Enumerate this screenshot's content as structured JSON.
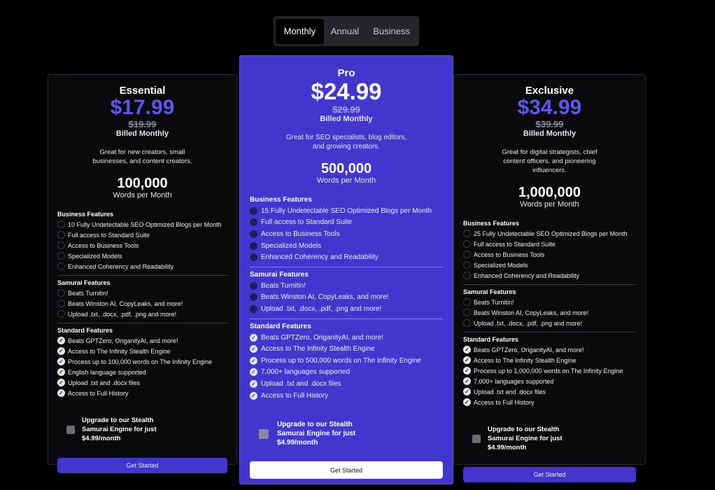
{
  "tabs": [
    {
      "label": "Monthly",
      "active": true
    },
    {
      "label": "Annual",
      "active": false
    },
    {
      "label": "Business",
      "active": false
    }
  ],
  "section_titles": {
    "business": "Business Features",
    "samurai": "Samurai Features",
    "standard": "Standard Features"
  },
  "plans": [
    {
      "name": "Essential",
      "price": "$17.99",
      "old_price": "$19.99",
      "billed": "Billed Monthly",
      "desc": "Great for new creators, small businesses, and content creators.",
      "words": "100,000",
      "words_label": "Words per Month",
      "business": [
        "10 Fully Undetectable SEO Optimized Blogs per Month",
        "Full access to Standard Suite",
        "Access to Business Tools",
        "Specialized Models",
        "Enhanced Coherency and Readability"
      ],
      "samurai": [
        "Beats Turnitin!",
        "Beats Winston AI, CopyLeaks, and more!",
        "Upload .txt, .docx, .pdf, .png and more!"
      ],
      "standard": [
        "Beats GPTZero, OriganityAI, and more!",
        "Access to The Infinity Stealth Engine",
        "Process up to 100,000 words on The Infinity Engine",
        "English language supported",
        "Upload .txt and .docx files",
        "Access to Full History"
      ],
      "upgrade": "Upgrade to our Stealth Samurai Engine for just $4.99/month",
      "button": "Get Started"
    },
    {
      "name": "Pro",
      "price": "$24.99",
      "old_price": "$29.99",
      "billed": "Billed Monthly",
      "desc": "Great for SEO specialists, blog editors, and growing creators.",
      "words": "500,000",
      "words_label": "Words per Month",
      "business": [
        "15 Fully Undetectable SEO Optimized Blogs per Month",
        "Full access to Standard Suite",
        "Access to Business Tools",
        "Specialized Models",
        "Enhanced Coherency and Readability"
      ],
      "samurai": [
        "Beats Turnitin!",
        "Beats Winston AI, CopyLeaks, and more!",
        "Upload .txt, .docx, .pdf, .png and more!"
      ],
      "standard": [
        "Beats GPTZero, OriganityAI, and more!",
        "Access to The Infinity Stealth Engine",
        "Process up to 500,000 words on The Infinity Engine",
        "7,000+ languages supported",
        "Upload .txt and .docx files",
        "Access to Full History"
      ],
      "upgrade": "Upgrade to our Stealth Samurai Engine for just $4.99/month",
      "button": "Get Started"
    },
    {
      "name": "Exclusive",
      "price": "$34.99",
      "old_price": "$39.99",
      "billed": "Billed Monthly",
      "desc": "Great for digital strategists, chief content officers, and pioneering influencers.",
      "words": "1,000,000",
      "words_label": "Words per Month",
      "business": [
        "25 Fully Undetectable SEO Optimized Blogs per Month",
        "Full access to Standard Suite",
        "Access to Business Tools",
        "Specialized Models",
        "Enhanced Coherency and Readability"
      ],
      "samurai": [
        "Beats Turnitin!",
        "Beats Winston AI, CopyLeaks, and more!",
        "Upload .txt, .docx, .pdf, .png and more!"
      ],
      "standard": [
        "Beats GPTZero, OriganityAI, and more!",
        "Access to The Infinity Stealth Engine",
        "Process up to 1,000,000 words on The Infinity Engine",
        "7,000+ languages supported",
        "Upload .txt and .docx files",
        "Access to Full History"
      ],
      "upgrade": "Upgrade to our Stealth Samurai Engine for just $4.99/month",
      "button": "Get Started"
    }
  ]
}
